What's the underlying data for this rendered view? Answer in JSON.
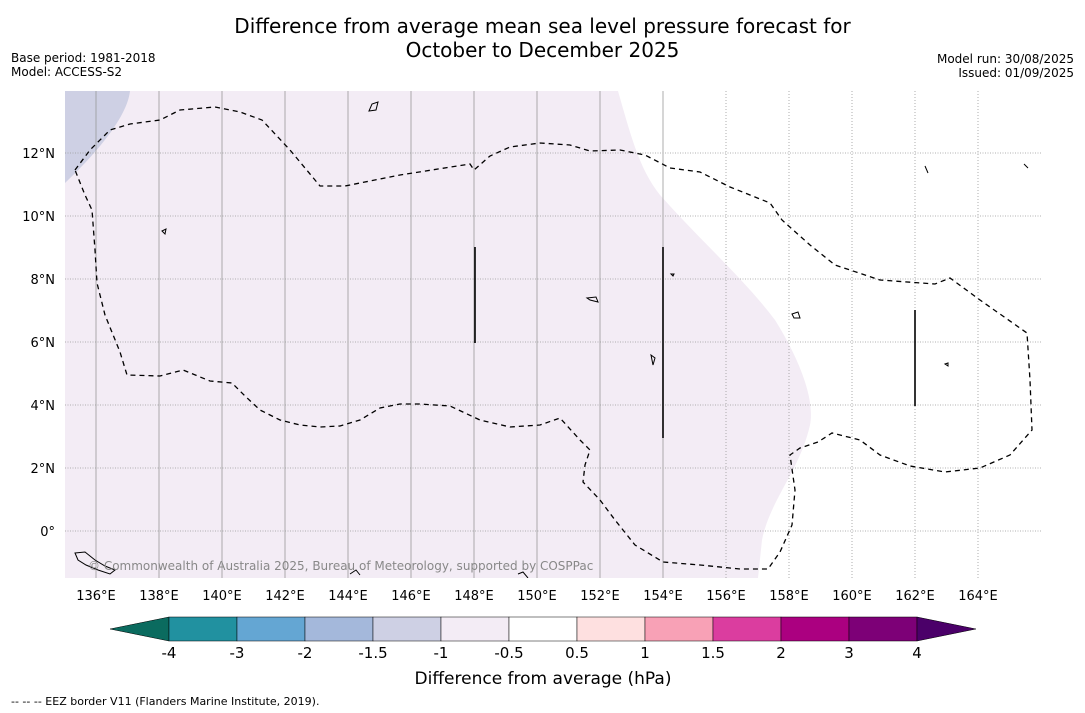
{
  "header": {
    "title_line1": "Difference from average mean sea level pressure forecast for",
    "title_line2": "October to December 2025",
    "base_period": "Base period: 1981-2018",
    "model": "Model: ACCESS-S2",
    "model_run": "Model run: 30/08/2025",
    "issued": "Issued: 01/09/2025"
  },
  "map": {
    "copyright": "© Commonwealth of Australia 2025, Bureau of Meteorology, supported by COSPPac",
    "lon_labels": [
      "136°E",
      "138°E",
      "140°E",
      "142°E",
      "144°E",
      "146°E",
      "148°E",
      "150°E",
      "152°E",
      "154°E",
      "156°E",
      "158°E",
      "160°E",
      "162°E",
      "164°E"
    ],
    "lat_labels": [
      "12°N",
      "10°N",
      "8°N",
      "6°N",
      "4°N",
      "2°N",
      "0°"
    ],
    "colors": {
      "lavender_light": "#f3ecf5",
      "blue_grey": "#ced0e4"
    }
  },
  "colorbar": {
    "label": "Difference from average (hPa)",
    "tick_labels": [
      "-4",
      "-3",
      "-2",
      "-1.5",
      "-1",
      "-0.5",
      "0.5",
      "1",
      "1.5",
      "2",
      "3",
      "4"
    ],
    "colors": [
      "#0b6b5f",
      "#2191a0",
      "#64a6d3",
      "#a4b8db",
      "#ced0e4",
      "#f3ecf5",
      "#ffffff",
      "#fee0e0",
      "#f8a1b6",
      "#db3d9f",
      "#ab0080",
      "#7d0077",
      "#4b0069"
    ]
  },
  "footer": {
    "eez_note": "--  --  -- EEZ border V11 (Flanders Marine Institute, 2019)."
  }
}
